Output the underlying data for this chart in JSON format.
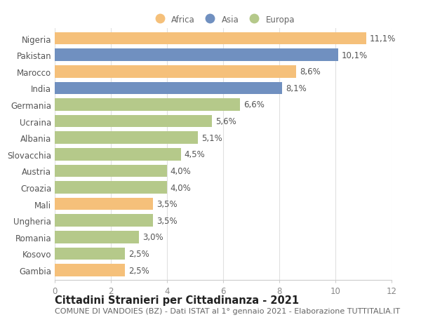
{
  "categories": [
    "Nigeria",
    "Pakistan",
    "Marocco",
    "India",
    "Germania",
    "Ucraina",
    "Albania",
    "Slovacchia",
    "Austria",
    "Croazia",
    "Mali",
    "Ungheria",
    "Romania",
    "Kosovo",
    "Gambia"
  ],
  "values": [
    11.1,
    10.1,
    8.6,
    8.1,
    6.6,
    5.6,
    5.1,
    4.5,
    4.0,
    4.0,
    3.5,
    3.5,
    3.0,
    2.5,
    2.5
  ],
  "labels": [
    "11,1%",
    "10,1%",
    "8,6%",
    "8,1%",
    "6,6%",
    "5,6%",
    "5,1%",
    "4,5%",
    "4,0%",
    "4,0%",
    "3,5%",
    "3,5%",
    "3,0%",
    "2,5%",
    "2,5%"
  ],
  "continents": [
    "Africa",
    "Asia",
    "Africa",
    "Asia",
    "Europa",
    "Europa",
    "Europa",
    "Europa",
    "Europa",
    "Europa",
    "Africa",
    "Europa",
    "Europa",
    "Europa",
    "Africa"
  ],
  "colors": {
    "Africa": "#F5C07A",
    "Asia": "#7090C0",
    "Europa": "#B5C98A"
  },
  "legend_labels": [
    "Africa",
    "Asia",
    "Europa"
  ],
  "title": "Cittadini Stranieri per Cittadinanza - 2021",
  "subtitle": "COMUNE DI VANDOIES (BZ) - Dati ISTAT al 1° gennaio 2021 - Elaborazione TUTTITALIA.IT",
  "xlim": [
    0,
    12
  ],
  "xticks": [
    0,
    2,
    4,
    6,
    8,
    10,
    12
  ],
  "background_color": "#ffffff",
  "bar_height": 0.75,
  "label_fontsize": 8.5,
  "tick_fontsize": 8.5,
  "title_fontsize": 10.5,
  "subtitle_fontsize": 8.0
}
